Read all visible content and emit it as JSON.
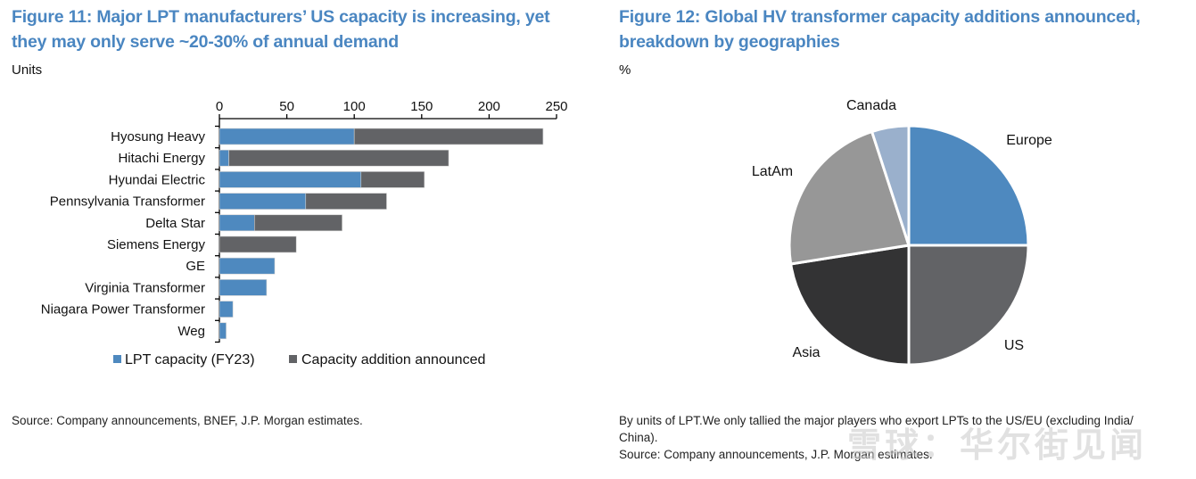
{
  "left_figure": {
    "title_line1": "Figure 11: Major LPT manufacturers’ US capacity is increasing, yet",
    "title_line2": "they may only serve ~20-30% of annual demand",
    "unit": "Units",
    "source": "Source: Company announcements, BNEF, J.P. Morgan estimates."
  },
  "right_figure": {
    "title_line1": "Figure 12: Global HV transformer capacity additions announced,",
    "title_line2": "breakdown by geographies",
    "unit": "%",
    "note_line1": "By units of LPT.We only tallied the major players who export LPTs to the US/EU (excluding India/",
    "note_line2": "China).",
    "source": "Source: Company announcements, J.P. Morgan estimates."
  },
  "watermark": "雪球：华尔街见闻",
  "chart_data": [
    {
      "type": "bar",
      "orientation": "horizontal",
      "stacked": true,
      "title": "Figure 11: Major LPT manufacturers’ US capacity is increasing, yet they may only serve ~20-30% of annual demand",
      "ylabel": "Units",
      "xlabel": "",
      "xlim": [
        0,
        250
      ],
      "xticks": [
        0,
        50,
        100,
        150,
        200,
        250
      ],
      "x_axis_position": "top",
      "grid": false,
      "legend_position": "bottom",
      "categories": [
        "Hyosung Heavy",
        "Hitachi Energy",
        "Hyundai Electric",
        "Pennsylvania Transformer",
        "Delta Star",
        "Siemens Energy",
        "GE",
        "Virginia Transformer",
        "Niagara Power Transformer",
        "Weg"
      ],
      "series": [
        {
          "name": "LPT capacity (FY23)",
          "color": "#4e89bf",
          "values": [
            100,
            7,
            105,
            64,
            26,
            0,
            41,
            35,
            10,
            5
          ]
        },
        {
          "name": "Capacity addition announced",
          "color": "#626366",
          "values": [
            140,
            163,
            47,
            60,
            65,
            57,
            0,
            0,
            0,
            0
          ]
        }
      ]
    },
    {
      "type": "pie",
      "title": "Figure 12: Global HV transformer capacity additions announced, breakdown by geographies",
      "unit": "%",
      "start": "top, clockwise",
      "labels": [
        "Europe",
        "US",
        "Asia",
        "LatAm",
        "Canada"
      ],
      "values": [
        25,
        25,
        22.5,
        22.5,
        5
      ],
      "colors": [
        "#4e89bf",
        "#626366",
        "#333334",
        "#979797",
        "#9ab0cc"
      ]
    }
  ]
}
